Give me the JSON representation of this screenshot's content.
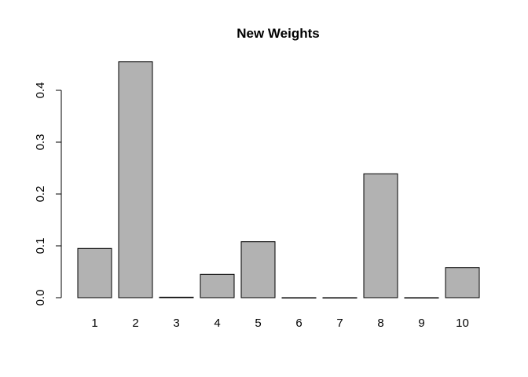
{
  "chart_data": {
    "type": "bar",
    "title": "New Weights",
    "xlabel": "",
    "ylabel": "",
    "categories": [
      "1",
      "2",
      "3",
      "4",
      "5",
      "6",
      "7",
      "8",
      "9",
      "10"
    ],
    "values": [
      0.095,
      0.455,
      0.001,
      0.045,
      0.108,
      0.0,
      0.0,
      0.239,
      0.0,
      0.058
    ],
    "yticks": [
      0.0,
      0.1,
      0.2,
      0.3,
      0.4
    ],
    "ytick_labels": [
      "0.0",
      "0.1",
      "0.2",
      "0.3",
      "0.4"
    ],
    "bar_color": "#b2b2b2",
    "grid": false
  }
}
